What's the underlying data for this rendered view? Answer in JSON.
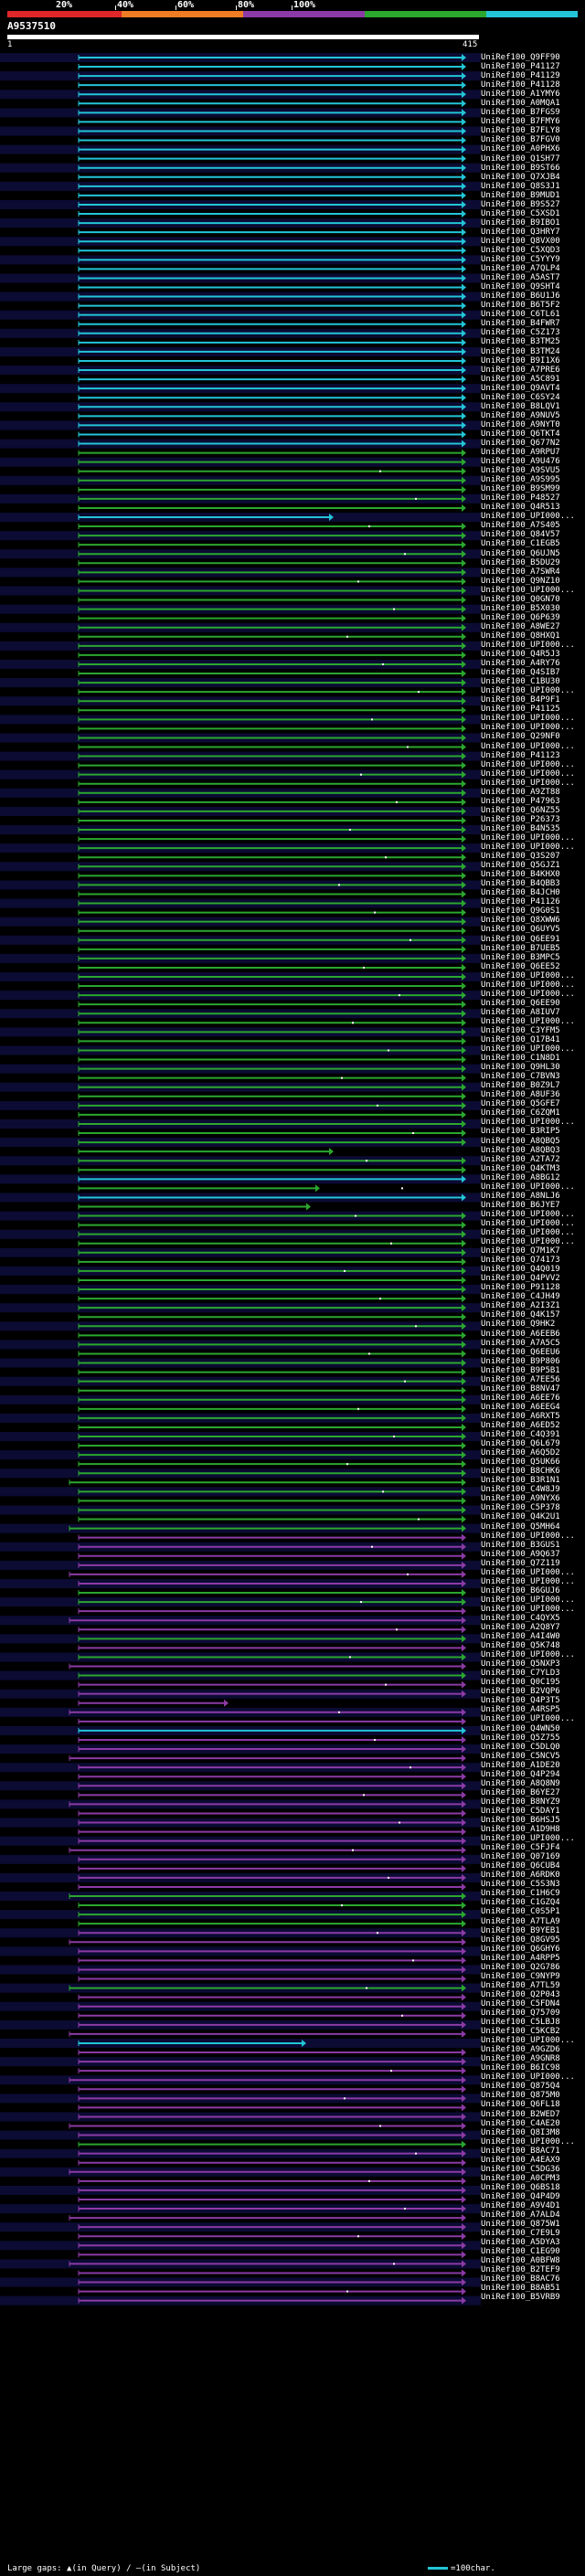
{
  "colors": {
    "background": "#000000",
    "band_lt20": "#e1262a",
    "band_20_40": "#f07d23",
    "band_40_60": "#8c3aa6",
    "band_60_80": "#2ba72f",
    "band_ge80": "#23c5d8",
    "row_shade": "#1a1a6e",
    "gap_dot": "#ffffff"
  },
  "identity_scale": [
    {
      "label": "20%",
      "tick": false
    },
    {
      "label": "40%",
      "tick": true
    },
    {
      "label": "60%",
      "tick": true
    },
    {
      "label": "80%",
      "tick": true
    },
    {
      "label": "100%",
      "tick": true
    }
  ],
  "query": {
    "name": "A9537510",
    "start_label": "1",
    "end_label": "415"
  },
  "hits": [
    {
      "acc": "UniRef100_Q9FF90",
      "band": 4
    },
    {
      "acc": "UniRef100_P41127",
      "band": 4
    },
    {
      "acc": "UniRef100_P41129",
      "band": 4
    },
    {
      "acc": "UniRef100_P41128",
      "band": 4
    },
    {
      "acc": "UniRef100_A1YMY6",
      "band": 4
    },
    {
      "acc": "UniRef100_A0MQA1",
      "band": 4
    },
    {
      "acc": "UniRef100_B7FGS9",
      "band": 4
    },
    {
      "acc": "UniRef100_B7FMY6",
      "band": 4
    },
    {
      "acc": "UniRef100_B7FLY8",
      "band": 4
    },
    {
      "acc": "UniRef100_B7FGV0",
      "band": 4
    },
    {
      "acc": "UniRef100_A0PHX6",
      "band": 4
    },
    {
      "acc": "UniRef100_Q1SH77",
      "band": 4
    },
    {
      "acc": "UniRef100_B9ST66",
      "band": 4
    },
    {
      "acc": "UniRef100_Q7XJB4",
      "band": 4
    },
    {
      "acc": "UniRef100_Q8S3J1",
      "band": 4
    },
    {
      "acc": "UniRef100_B9MUD1",
      "band": 4
    },
    {
      "acc": "UniRef100_B9S527",
      "band": 4
    },
    {
      "acc": "UniRef100_C5XSD1",
      "band": 4
    },
    {
      "acc": "UniRef100_B9IBO1",
      "band": 4
    },
    {
      "acc": "UniRef100_Q3HRY7",
      "band": 4
    },
    {
      "acc": "UniRef100_Q8VX00",
      "band": 4
    },
    {
      "acc": "UniRef100_C5XQD3",
      "band": 4
    },
    {
      "acc": "UniRef100_C5YYY9",
      "band": 4
    },
    {
      "acc": "UniRef100_A7QLP4",
      "band": 4
    },
    {
      "acc": "UniRef100_A5AST7",
      "band": 4
    },
    {
      "acc": "UniRef100_Q9SHT4",
      "band": 4
    },
    {
      "acc": "UniRef100_B6U1J6",
      "band": 4
    },
    {
      "acc": "UniRef100_B6T5F2",
      "band": 4
    },
    {
      "acc": "UniRef100_C6TL61",
      "band": 4
    },
    {
      "acc": "UniRef100_B4FWR7",
      "band": 4
    },
    {
      "acc": "UniRef100_C5Z173",
      "band": 4
    },
    {
      "acc": "UniRef100_B3TM25",
      "band": 4
    },
    {
      "acc": "UniRef100_B3TM24",
      "band": 4
    },
    {
      "acc": "UniRef100_B9I1X6",
      "band": 4
    },
    {
      "acc": "UniRef100_A7PRE6",
      "band": 4
    },
    {
      "acc": "UniRef100_A5C891",
      "band": 4
    },
    {
      "acc": "UniRef100_Q9AVT4",
      "band": 4
    },
    {
      "acc": "UniRef100_C6SY24",
      "band": 4
    },
    {
      "acc": "UniRef100_B8LQV1",
      "band": 4
    },
    {
      "acc": "UniRef100_A9NUV5",
      "band": 4
    },
    {
      "acc": "UniRef100_A9NYT0",
      "band": 4
    },
    {
      "acc": "UniRef100_Q6TKT4",
      "band": 4
    },
    {
      "acc": "UniRef100_Q677N2",
      "band": 4
    },
    {
      "acc": "UniRef100_A9RPU7",
      "band": 3
    },
    {
      "acc": "UniRef100_A9U476",
      "band": 3
    },
    {
      "acc": "UniRef100_A9SVU5",
      "band": 3
    },
    {
      "acc": "UniRef100_A9S995",
      "band": 3
    },
    {
      "acc": "UniRef100_B9SM99",
      "band": 3
    },
    {
      "acc": "UniRef100_P48527",
      "band": 3
    },
    {
      "acc": "UniRef100_Q4R513",
      "band": 3
    },
    {
      "acc": "UniRef100_UPI000...",
      "band": 4
    },
    {
      "acc": "UniRef100_A7S405",
      "band": 3
    },
    {
      "acc": "UniRef100_Q84V57",
      "band": 3
    },
    {
      "acc": "UniRef100_C1EGB5",
      "band": 3
    },
    {
      "acc": "UniRef100_Q6UJN5",
      "band": 3
    },
    {
      "acc": "UniRef100_B5DU29",
      "band": 3
    },
    {
      "acc": "UniRef100_A7SWR4",
      "band": 3
    },
    {
      "acc": "UniRef100_Q9NZ10",
      "band": 3
    },
    {
      "acc": "UniRef100_UPI000...",
      "band": 3
    },
    {
      "acc": "UniRef100_Q0GN70",
      "band": 3
    },
    {
      "acc": "UniRef100_B5X030",
      "band": 3
    },
    {
      "acc": "UniRef100_Q6P639",
      "band": 3
    },
    {
      "acc": "UniRef100_A8WE27",
      "band": 3
    },
    {
      "acc": "UniRef100_Q8HXQ1",
      "band": 3
    },
    {
      "acc": "UniRef100_UPI000...",
      "band": 3
    },
    {
      "acc": "UniRef100_Q4R5J3",
      "band": 3
    },
    {
      "acc": "UniRef100_A4RY76",
      "band": 3
    },
    {
      "acc": "UniRef100_Q4SIB7",
      "band": 3
    },
    {
      "acc": "UniRef100_C1BU30",
      "band": 3
    },
    {
      "acc": "UniRef100_UPI000...",
      "band": 3
    },
    {
      "acc": "UniRef100_B4P9F1",
      "band": 3
    },
    {
      "acc": "UniRef100_P41125",
      "band": 3
    },
    {
      "acc": "UniRef100_UPI000...",
      "band": 3
    },
    {
      "acc": "UniRef100_UPI000...",
      "band": 3
    },
    {
      "acc": "UniRef100_Q29NF0",
      "band": 3
    },
    {
      "acc": "UniRef100_UPI000...",
      "band": 3
    },
    {
      "acc": "UniRef100_P41123",
      "band": 3
    },
    {
      "acc": "UniRef100_UPI000...",
      "band": 3
    },
    {
      "acc": "UniRef100_UPI000...",
      "band": 3
    },
    {
      "acc": "UniRef100_UPI000...",
      "band": 3
    },
    {
      "acc": "UniRef100_A9ZT88",
      "band": 3
    },
    {
      "acc": "UniRef100_P47963",
      "band": 3
    },
    {
      "acc": "UniRef100_Q6NZ55",
      "band": 3
    },
    {
      "acc": "UniRef100_P26373",
      "band": 3
    },
    {
      "acc": "UniRef100_B4N535",
      "band": 3
    },
    {
      "acc": "UniRef100_UPI000...",
      "band": 3
    },
    {
      "acc": "UniRef100_UPI000...",
      "band": 3
    },
    {
      "acc": "UniRef100_Q3S207",
      "band": 3
    },
    {
      "acc": "UniRef100_Q5GJZ1",
      "band": 3
    },
    {
      "acc": "UniRef100_B4KHX0",
      "band": 3
    },
    {
      "acc": "UniRef100_B4QBB3",
      "band": 3
    },
    {
      "acc": "UniRef100_B4JCH0",
      "band": 3
    },
    {
      "acc": "UniRef100_P41126",
      "band": 3
    },
    {
      "acc": "UniRef100_Q9G0S1",
      "band": 3
    },
    {
      "acc": "UniRef100_Q8XWW6",
      "band": 3
    },
    {
      "acc": "UniRef100_Q6UYV5",
      "band": 3
    },
    {
      "acc": "UniRef100_Q6EE91",
      "band": 3
    },
    {
      "acc": "UniRef100_B7UEB5",
      "band": 3
    },
    {
      "acc": "UniRef100_B3MPC5",
      "band": 3
    },
    {
      "acc": "UniRef100_Q6EE52",
      "band": 3
    },
    {
      "acc": "UniRef100_UPI000...",
      "band": 3
    },
    {
      "acc": "UniRef100_UPI000...",
      "band": 3
    },
    {
      "acc": "UniRef100_UPI000...",
      "band": 3
    },
    {
      "acc": "UniRef100_Q6EE90",
      "band": 3
    },
    {
      "acc": "UniRef100_A8IUV7",
      "band": 3
    },
    {
      "acc": "UniRef100_UPI000...",
      "band": 3
    },
    {
      "acc": "UniRef100_C3YFM5",
      "band": 3
    },
    {
      "acc": "UniRef100_Q17B41",
      "band": 3
    },
    {
      "acc": "UniRef100_UPI000...",
      "band": 3
    },
    {
      "acc": "UniRef100_C1N8D1",
      "band": 3
    },
    {
      "acc": "UniRef100_Q9HL30",
      "band": 3
    },
    {
      "acc": "UniRef100_C7BVN3",
      "band": 3
    },
    {
      "acc": "UniRef100_B0Z9L7",
      "band": 3
    },
    {
      "acc": "UniRef100_A8UF36",
      "band": 3
    },
    {
      "acc": "UniRef100_Q5GFE7",
      "band": 3
    },
    {
      "acc": "UniRef100_C6ZQM1",
      "band": 3
    },
    {
      "acc": "UniRef100_UPI000...",
      "band": 3
    },
    {
      "acc": "UniRef100_B3RIP5",
      "band": 3
    },
    {
      "acc": "UniRef100_A8QBQ5",
      "band": 3
    },
    {
      "acc": "UniRef100_A8QBQ3",
      "band": 3
    },
    {
      "acc": "UniRef100_A2TA72",
      "band": 3
    },
    {
      "acc": "UniRef100_Q4KTM3",
      "band": 3
    },
    {
      "acc": "UniRef100_A8BG12",
      "band": 4
    },
    {
      "acc": "UniRef100_UPI000...",
      "band": 3
    },
    {
      "acc": "UniRef100_A8NLJ6",
      "band": 4
    },
    {
      "acc": "UniRef100_B6JYE7",
      "band": 3
    },
    {
      "acc": "UniRef100_UPI000...",
      "band": 3
    },
    {
      "acc": "UniRef100_UPI000...",
      "band": 3
    },
    {
      "acc": "UniRef100_UPI000...",
      "band": 3
    },
    {
      "acc": "UniRef100_UPI000...",
      "band": 3
    },
    {
      "acc": "UniRef100_Q7M1K7",
      "band": 3
    },
    {
      "acc": "UniRef100_Q74173",
      "band": 3
    },
    {
      "acc": "UniRef100_Q4Q019",
      "band": 3
    },
    {
      "acc": "UniRef100_Q4PVV2",
      "band": 3
    },
    {
      "acc": "UniRef100_P91128",
      "band": 3
    },
    {
      "acc": "UniRef100_C4JH49",
      "band": 3
    },
    {
      "acc": "UniRef100_A2I3Z1",
      "band": 3
    },
    {
      "acc": "UniRef100_Q4K157",
      "band": 3
    },
    {
      "acc": "UniRef100_Q9HK2",
      "band": 3
    },
    {
      "acc": "UniRef100_A6EEB6",
      "band": 3
    },
    {
      "acc": "UniRef100_A7A5C5",
      "band": 3
    },
    {
      "acc": "UniRef100_Q6EEU6",
      "band": 3
    },
    {
      "acc": "UniRef100_B9P806",
      "band": 3
    },
    {
      "acc": "UniRef100_B9P5B1",
      "band": 3
    },
    {
      "acc": "UniRef100_A7EE56",
      "band": 3
    },
    {
      "acc": "UniRef100_B8NV47",
      "band": 3
    },
    {
      "acc": "UniRef100_A6EE76",
      "band": 3
    },
    {
      "acc": "UniRef100_A6EEG4",
      "band": 3
    },
    {
      "acc": "UniRef100_A6RXT5",
      "band": 3
    },
    {
      "acc": "UniRef100_A6ED52",
      "band": 3
    },
    {
      "acc": "UniRef100_C4Q391",
      "band": 3
    },
    {
      "acc": "UniRef100_Q6L679",
      "band": 3
    },
    {
      "acc": "UniRef100_A6Q5D2",
      "band": 3
    },
    {
      "acc": "UniRef100_Q5UK66",
      "band": 3
    },
    {
      "acc": "UniRef100_B8CHK6",
      "band": 3
    },
    {
      "acc": "UniRef100_B3R1N1",
      "band": 3
    },
    {
      "acc": "UniRef100_C4W8J9",
      "band": 3
    },
    {
      "acc": "UniRef100_A9NYX6",
      "band": 3
    },
    {
      "acc": "UniRef100_C5P378",
      "band": 3
    },
    {
      "acc": "UniRef100_Q4K2U1",
      "band": 3
    },
    {
      "acc": "UniRef100_Q5MH64",
      "band": 3
    },
    {
      "acc": "UniRef100_UPI000...",
      "band": 2
    },
    {
      "acc": "UniRef100_B3GUS1",
      "band": 2
    },
    {
      "acc": "UniRef100_A9Q637",
      "band": 2
    },
    {
      "acc": "UniRef100_Q7Z119",
      "band": 2
    },
    {
      "acc": "UniRef100_UPI000...",
      "band": 2
    },
    {
      "acc": "UniRef100_UPI000...",
      "band": 2
    },
    {
      "acc": "UniRef100_B6GUJ6",
      "band": 3
    },
    {
      "acc": "UniRef100_UPI000...",
      "band": 3
    },
    {
      "acc": "UniRef100_UPI000...",
      "band": 2
    },
    {
      "acc": "UniRef100_C4QYX5",
      "band": 2
    },
    {
      "acc": "UniRef100_A2Q8Y7",
      "band": 2
    },
    {
      "acc": "UniRef100_A4I4W0",
      "band": 3
    },
    {
      "acc": "UniRef100_Q5K748",
      "band": 2
    },
    {
      "acc": "UniRef100_UPI000...",
      "band": 3
    },
    {
      "acc": "UniRef100_Q5NXP3",
      "band": 2
    },
    {
      "acc": "UniRef100_C7YLD3",
      "band": 3
    },
    {
      "acc": "UniRef100_Q0C195",
      "band": 2
    },
    {
      "acc": "UniRef100_B2VQP6",
      "band": 2
    },
    {
      "acc": "UniRef100_Q4P3T5",
      "band": 2
    },
    {
      "acc": "UniRef100_A4RSP5",
      "band": 2
    },
    {
      "acc": "UniRef100_UPI000...",
      "band": 2
    },
    {
      "acc": "UniRef100_Q4WN50",
      "band": 4
    },
    {
      "acc": "UniRef100_Q5Z755",
      "band": 2
    },
    {
      "acc": "UniRef100_C5DLQ0",
      "band": 2
    },
    {
      "acc": "UniRef100_C5NCV5",
      "band": 2
    },
    {
      "acc": "UniRef100_A1DE20",
      "band": 2
    },
    {
      "acc": "UniRef100_Q4P294",
      "band": 2
    },
    {
      "acc": "UniRef100_A8Q8N9",
      "band": 2
    },
    {
      "acc": "UniRef100_B6YE27",
      "band": 2
    },
    {
      "acc": "UniRef100_B8NYZ9",
      "band": 2
    },
    {
      "acc": "UniRef100_C5DAY1",
      "band": 2
    },
    {
      "acc": "UniRef100_B6HSJ5",
      "band": 2
    },
    {
      "acc": "UniRef100_A1D9H8",
      "band": 2
    },
    {
      "acc": "UniRef100_UPI000...",
      "band": 2
    },
    {
      "acc": "UniRef100_C5FJF4",
      "band": 2
    },
    {
      "acc": "UniRef100_Q07169",
      "band": 2
    },
    {
      "acc": "UniRef100_Q6CUB4",
      "band": 2
    },
    {
      "acc": "UniRef100_A6RDK0",
      "band": 2
    },
    {
      "acc": "UniRef100_C5S3N3",
      "band": 2
    },
    {
      "acc": "UniRef100_C1H6C9",
      "band": 3
    },
    {
      "acc": "UniRef100_C1GZQ4",
      "band": 3
    },
    {
      "acc": "UniRef100_C0S5P1",
      "band": 3
    },
    {
      "acc": "UniRef100_A7TLA9",
      "band": 3
    },
    {
      "acc": "UniRef100_B9YEB1",
      "band": 2
    },
    {
      "acc": "UniRef100_Q8GV95",
      "band": 2
    },
    {
      "acc": "UniRef100_Q6GHY6",
      "band": 2
    },
    {
      "acc": "UniRef100_A4RPP5",
      "band": 2
    },
    {
      "acc": "UniRef100_Q2G786",
      "band": 2
    },
    {
      "acc": "UniRef100_C9NYP9",
      "band": 2
    },
    {
      "acc": "UniRef100_A7TL59",
      "band": 3
    },
    {
      "acc": "UniRef100_Q2P043",
      "band": 2
    },
    {
      "acc": "UniRef100_C5FDN4",
      "band": 2
    },
    {
      "acc": "UniRef100_Q75709",
      "band": 2
    },
    {
      "acc": "UniRef100_C5LBJ8",
      "band": 2
    },
    {
      "acc": "UniRef100_C5KCB2",
      "band": 2
    },
    {
      "acc": "UniRef100_UPI000...",
      "band": 4
    },
    {
      "acc": "UniRef100_A9GZD6",
      "band": 2
    },
    {
      "acc": "UniRef100_A9GNR8",
      "band": 2
    },
    {
      "acc": "UniRef100_B6IC98",
      "band": 2
    },
    {
      "acc": "UniRef100_UPI000...",
      "band": 2
    },
    {
      "acc": "UniRef100_Q875Q4",
      "band": 2
    },
    {
      "acc": "UniRef100_Q875M0",
      "band": 2
    },
    {
      "acc": "UniRef100_Q6FL18",
      "band": 2
    },
    {
      "acc": "UniRef100_B2WED7",
      "band": 2
    },
    {
      "acc": "UniRef100_C4AE20",
      "band": 2
    },
    {
      "acc": "UniRef100_Q8I3M8",
      "band": 2
    },
    {
      "acc": "UniRef100_UPI000...",
      "band": 3
    },
    {
      "acc": "UniRef100_B8AC71",
      "band": 2
    },
    {
      "acc": "UniRef100_A4EAX9",
      "band": 2
    },
    {
      "acc": "UniRef100_C5DG36",
      "band": 2
    },
    {
      "acc": "UniRef100_A0CPM3",
      "band": 2
    },
    {
      "acc": "UniRef100_Q6BS18",
      "band": 2
    },
    {
      "acc": "UniRef100_Q4P4D9",
      "band": 2
    },
    {
      "acc": "UniRef100_A9V4D1",
      "band": 2
    },
    {
      "acc": "UniRef100_A7ALD4",
      "band": 2
    },
    {
      "acc": "UniRef100_Q875W1",
      "band": 2
    },
    {
      "acc": "UniRef100_C7E9L9",
      "band": 2
    },
    {
      "acc": "UniRef100_A5DYA3",
      "band": 2
    },
    {
      "acc": "UniRef100_C1EG90",
      "band": 2
    },
    {
      "acc": "UniRef100_A0BFW8",
      "band": 2
    },
    {
      "acc": "UniRef100_B2TEF9",
      "band": 2
    },
    {
      "acc": "UniRef100_B8AC76",
      "band": 2
    },
    {
      "acc": "UniRef100_B8AB51",
      "band": 2
    },
    {
      "acc": "UniRef100_B5VRB9",
      "band": 2
    }
  ],
  "legend": {
    "large_gaps_label": "Large gaps:",
    "in_query": "(in Query)",
    "in_subject": "(in Subject)",
    "scale_label": "=100char."
  }
}
